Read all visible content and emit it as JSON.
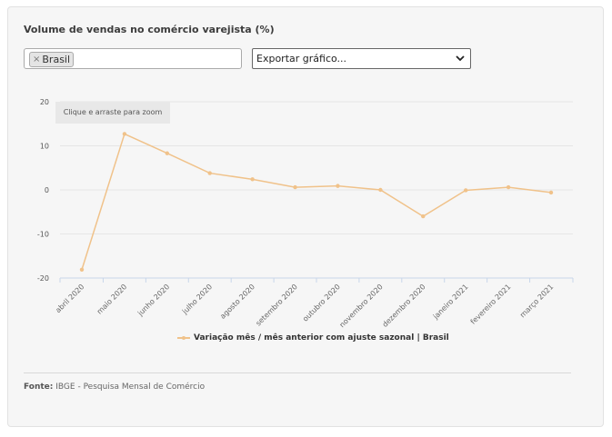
{
  "title": "Volume de vendas no comércio varejista (%)",
  "filter": {
    "tag_label": "Brasil",
    "remove_symbol": "×"
  },
  "export_select": {
    "selected": "Exportar gráfico...",
    "chevron_icon": "chevron-down-icon"
  },
  "zoom_hint": "Clique e arraste para zoom",
  "source": {
    "label": "Fonte:",
    "text": "IBGE - Pesquisa Mensal de Comércio"
  },
  "colors": {
    "series": "#f0c28a",
    "grid": "#e6e6e6",
    "axis": "#c8d6ea",
    "card_bg": "#f6f6f6"
  },
  "chart_data": {
    "type": "line",
    "title": "Volume de vendas no comércio varejista (%)",
    "categories": [
      "abril 2020",
      "maio 2020",
      "junho 2020",
      "julho 2020",
      "agosto 2020",
      "setembro 2020",
      "outubro 2020",
      "novembro 2020",
      "dezembro 2020",
      "janeiro 2021",
      "fevereiro 2021",
      "março 2021"
    ],
    "series": [
      {
        "name": "Variação mês / mês anterior com ajuste sazonal | Brasil",
        "values": [
          -18.1,
          12.7,
          8.3,
          3.8,
          2.4,
          0.6,
          0.9,
          0.0,
          -6.0,
          -0.1,
          0.6,
          -0.6
        ]
      }
    ],
    "ylim": [
      -20,
      20
    ],
    "yticks": [
      -20,
      -10,
      0,
      10,
      20
    ],
    "ytick_labels": [
      "-20",
      "-10",
      "0",
      "10",
      "20"
    ],
    "grid": true,
    "legend": "bottom-center"
  }
}
